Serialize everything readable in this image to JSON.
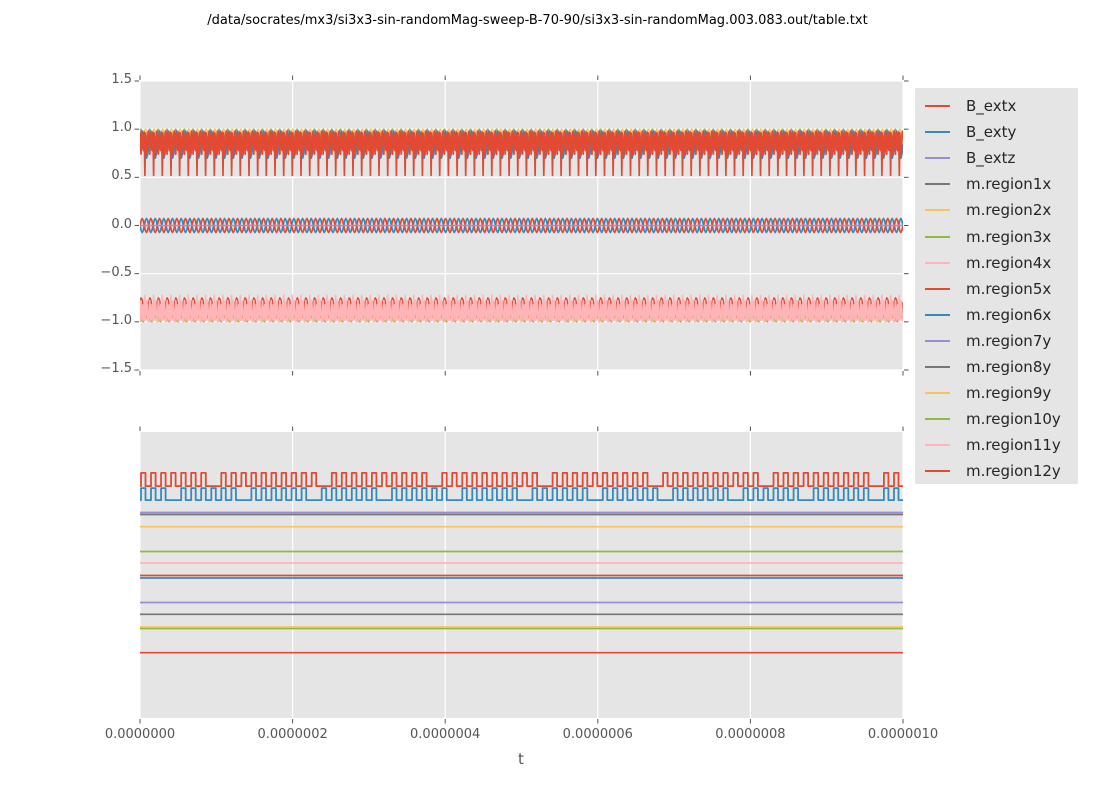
{
  "title": "/data/socrates/mx3/si3x3-sin-randomMag-sweep-B-70-90/si3x3-sin-randomMag.003.083.out/table.txt",
  "colors": {
    "red": "#E24A33",
    "blue": "#348ABD",
    "purple": "#988ED5",
    "gray": "#777777",
    "yellow": "#FBC15E",
    "green": "#8EBA42",
    "pink": "#FFB5B8",
    "axes_background": "#E5E5E5",
    "grid": "#FFFFFF",
    "tick_text": "#555555",
    "title_text": "#000000",
    "legend_background": "#E5E5E5",
    "legend_text": "#262626"
  },
  "xaxis": {
    "label": "t",
    "tick_labels": [
      "0.0000000",
      "0.0000002",
      "0.0000004",
      "0.0000006",
      "0.0000008",
      "0.0000010"
    ]
  },
  "yaxis_top": {
    "tick_labels": [
      "1.5",
      "1.0",
      "0.5",
      "0.0",
      "−0.5",
      "−1.0",
      "−1.5"
    ]
  },
  "legend": {
    "entries": [
      {
        "label": "B_extx",
        "color": "#E24A33"
      },
      {
        "label": "B_exty",
        "color": "#348ABD"
      },
      {
        "label": "B_extz",
        "color": "#988ED5"
      },
      {
        "label": "m.region1x",
        "color": "#777777"
      },
      {
        "label": "m.region2x",
        "color": "#FBC15E"
      },
      {
        "label": "m.region3x",
        "color": "#8EBA42"
      },
      {
        "label": "m.region4x",
        "color": "#FFB5B8"
      },
      {
        "label": "m.region5x",
        "color": "#E24A33"
      },
      {
        "label": "m.region6x",
        "color": "#348ABD"
      },
      {
        "label": "m.region7y",
        "color": "#988ED5"
      },
      {
        "label": "m.region8y",
        "color": "#777777"
      },
      {
        "label": "m.region9y",
        "color": "#FBC15E"
      },
      {
        "label": "m.region10y",
        "color": "#8EBA42"
      },
      {
        "label": "m.region11y",
        "color": "#FFB5B8"
      },
      {
        "label": "m.region12y",
        "color": "#E24A33"
      }
    ]
  },
  "chart_data": [
    {
      "id": "top",
      "type": "line",
      "xlabel": "t",
      "xlim": [
        0,
        1e-06
      ],
      "ylim": [
        -1.5,
        1.5
      ],
      "xticks": [
        0,
        2e-07,
        4e-07,
        6e-07,
        8e-07,
        1e-06
      ],
      "yticks": [
        1.5,
        1.0,
        0.5,
        0.0,
        -0.5,
        -1.0,
        -1.5
      ],
      "grid": "both",
      "tick_sides": {
        "top": true,
        "bottom": true,
        "left": true,
        "right": true
      },
      "series": [
        {
          "name": "upper-band-gray",
          "kind": "sine",
          "color": "#777777",
          "mid": 0.86,
          "amp": 0.09,
          "cycles": 88,
          "phase": 0.3,
          "width": 1.5
        },
        {
          "name": "upper-band-yellow",
          "kind": "sine",
          "color": "#FBC15E",
          "mid": 0.94,
          "amp": 0.06,
          "cycles": 88,
          "phase": 0.62,
          "width": 1.5
        },
        {
          "name": "upper-band-green",
          "kind": "sine",
          "color": "#8EBA42",
          "mid": 0.93,
          "amp": 0.07,
          "cycles": 88,
          "phase": 0.15,
          "width": 1.6
        },
        {
          "name": "upper-band-blue",
          "kind": "sine",
          "color": "#348ABD",
          "mid": 0.84,
          "amp": 0.14,
          "cycles": 88,
          "phase": 0.0,
          "width": 1.8
        },
        {
          "name": "upper-band-red",
          "kind": "burst-down",
          "color": "#E24A33",
          "max": 0.98,
          "body": 0.74,
          "spike": 0.52,
          "cycles": 88,
          "width": 1.7
        },
        {
          "name": "zero-band-blue",
          "kind": "sine",
          "color": "#348ABD",
          "mid": 0.0,
          "amp": 0.073,
          "cycles": 88,
          "phase": 0.5,
          "width": 1.7
        },
        {
          "name": "zero-band-red",
          "kind": "sine",
          "color": "#E24A33",
          "mid": 0.0,
          "amp": 0.073,
          "cycles": 88,
          "phase": 0.0,
          "width": 1.7
        },
        {
          "name": "zero-band-purple",
          "kind": "flat",
          "color": "#988ED5",
          "value": 0.0,
          "width": 1.6
        },
        {
          "name": "lower-band-gray",
          "kind": "sine",
          "color": "#777777",
          "mid": -0.93,
          "amp": 0.05,
          "cycles": 88,
          "phase": 0.2,
          "width": 1.5
        },
        {
          "name": "lower-band-yellow",
          "kind": "sine",
          "color": "#FBC15E",
          "mid": -0.94,
          "amp": 0.06,
          "cycles": 88,
          "phase": 0.72,
          "width": 1.5
        },
        {
          "name": "lower-band-green",
          "kind": "sine",
          "color": "#8EBA42",
          "mid": -0.95,
          "amp": 0.05,
          "cycles": 88,
          "phase": 0.4,
          "width": 1.5
        },
        {
          "name": "lower-band-red",
          "kind": "sine",
          "color": "#E24A33",
          "mid": -0.86,
          "amp": 0.11,
          "cycles": 88,
          "phase": 0.1,
          "width": 1.6
        },
        {
          "name": "lower-band-pink",
          "kind": "burst-up",
          "color": "#FFB5B8",
          "min": -1.0,
          "body": -0.78,
          "spike": -0.725,
          "cycles": 88,
          "width": 1.7
        }
      ]
    },
    {
      "id": "bottom",
      "type": "line",
      "xlabel": "t",
      "xlim": [
        0,
        1e-06
      ],
      "ylim": [
        0,
        1
      ],
      "yscale_note": "no y tick labels shown; values are fractions of axis height",
      "xticks": [
        0,
        2e-07,
        4e-07,
        6e-07,
        8e-07,
        1e-06
      ],
      "yticks": [],
      "grid": "x",
      "tick_sides": {
        "top": true,
        "bottom": true,
        "left": false,
        "right": false
      },
      "series": [
        {
          "name": "square-red",
          "kind": "square",
          "color": "#E24A33",
          "hi": 0.857,
          "lo": 0.811,
          "cycles": 76,
          "breakEvery": 11,
          "breakPhase": 7,
          "width": 1.8
        },
        {
          "name": "square-blue",
          "kind": "square",
          "color": "#348ABD",
          "hi": 0.804,
          "lo": 0.762,
          "cycles": 76,
          "breakEvery": 7,
          "breakPhase": 3,
          "width": 1.8
        },
        {
          "name": "flat-purple-1",
          "kind": "flat",
          "color": "#988ED5",
          "value": 0.7185,
          "width": 1.7
        },
        {
          "name": "flat-gray-1",
          "kind": "flat",
          "color": "#777777",
          "value": 0.7115,
          "width": 1.7
        },
        {
          "name": "flat-orange",
          "kind": "flat",
          "color": "#FBC15E",
          "value": 0.669,
          "width": 1.7
        },
        {
          "name": "flat-green-1",
          "kind": "flat",
          "color": "#8EBA42",
          "value": 0.582,
          "width": 1.7
        },
        {
          "name": "flat-pink",
          "kind": "flat",
          "color": "#FFB5B8",
          "value": 0.542,
          "width": 1.7
        },
        {
          "name": "flat-blue-2",
          "kind": "flat",
          "color": "#348ABD",
          "value": 0.4895,
          "width": 1.7
        },
        {
          "name": "flat-red-2",
          "kind": "flat",
          "color": "#E24A33",
          "value": 0.4983,
          "width": 1.7
        },
        {
          "name": "flat-purple-2",
          "kind": "flat",
          "color": "#988ED5",
          "value": 0.4038,
          "width": 1.7
        },
        {
          "name": "flat-gray-2",
          "kind": "flat",
          "color": "#777777",
          "value": 0.3626,
          "width": 1.7
        },
        {
          "name": "flat-green-3",
          "kind": "flat",
          "color": "#8EBA42",
          "value": 0.313,
          "width": 1.7
        },
        {
          "name": "flat-yellow-3",
          "kind": "flat",
          "color": "#FBC15E",
          "value": 0.3182,
          "width": 1.7
        },
        {
          "name": "flat-red-3",
          "kind": "flat",
          "color": "#E24A33",
          "value": 0.2283,
          "width": 1.7
        }
      ]
    }
  ]
}
